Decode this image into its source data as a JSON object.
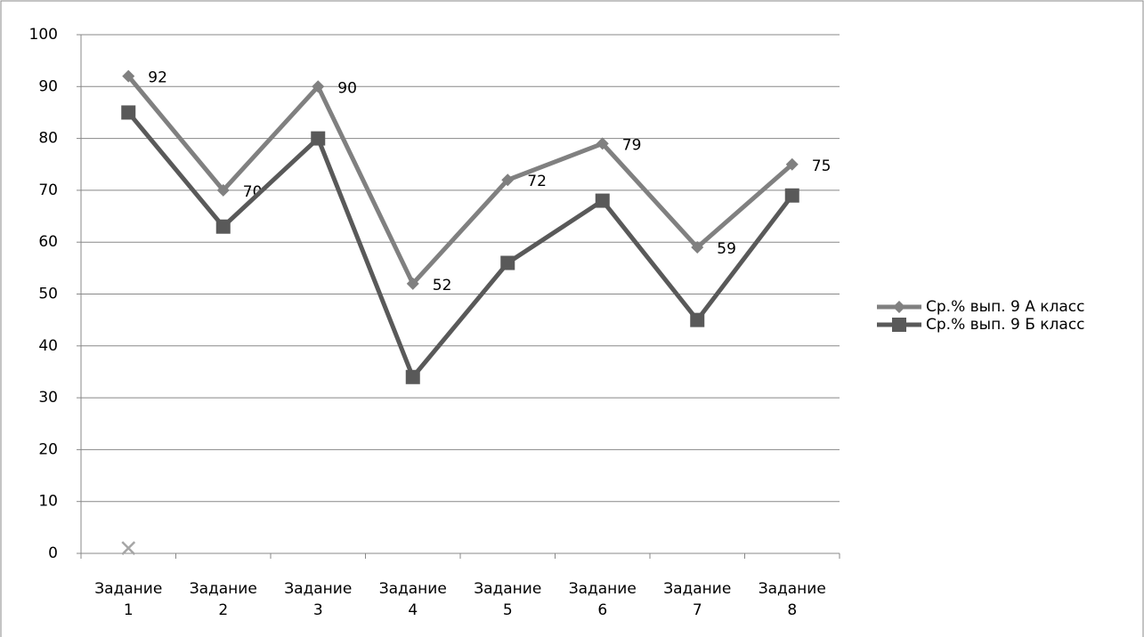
{
  "chart_data": {
    "type": "line",
    "categories": [
      "Задание 1",
      "Задание 2",
      "Задание 3",
      "Задание 4",
      "Задание 5",
      "Задание 6",
      "Задание 7",
      "Задание 8"
    ],
    "series": [
      {
        "name": "Ср.% вып. 9 А класс",
        "color": "#808080",
        "marker": "diamond",
        "data_labels": true,
        "values": [
          92,
          70,
          90,
          52,
          72,
          79,
          59,
          75
        ]
      },
      {
        "name": "Ср.% вып. 9 Б класс",
        "color": "#595959",
        "marker": "square",
        "data_labels": false,
        "values": [
          85,
          63,
          80,
          34,
          56,
          68,
          45,
          69
        ]
      },
      {
        "color": "#a6a6a6",
        "marker": "x",
        "data_labels": false,
        "values": [
          1,
          null,
          null,
          null,
          null,
          null,
          null,
          null
        ]
      }
    ],
    "ylim": [
      0,
      100
    ],
    "yticks": [
      0,
      10,
      20,
      30,
      40,
      50,
      60,
      70,
      80,
      90,
      100
    ],
    "grid": true,
    "legend": "right"
  }
}
